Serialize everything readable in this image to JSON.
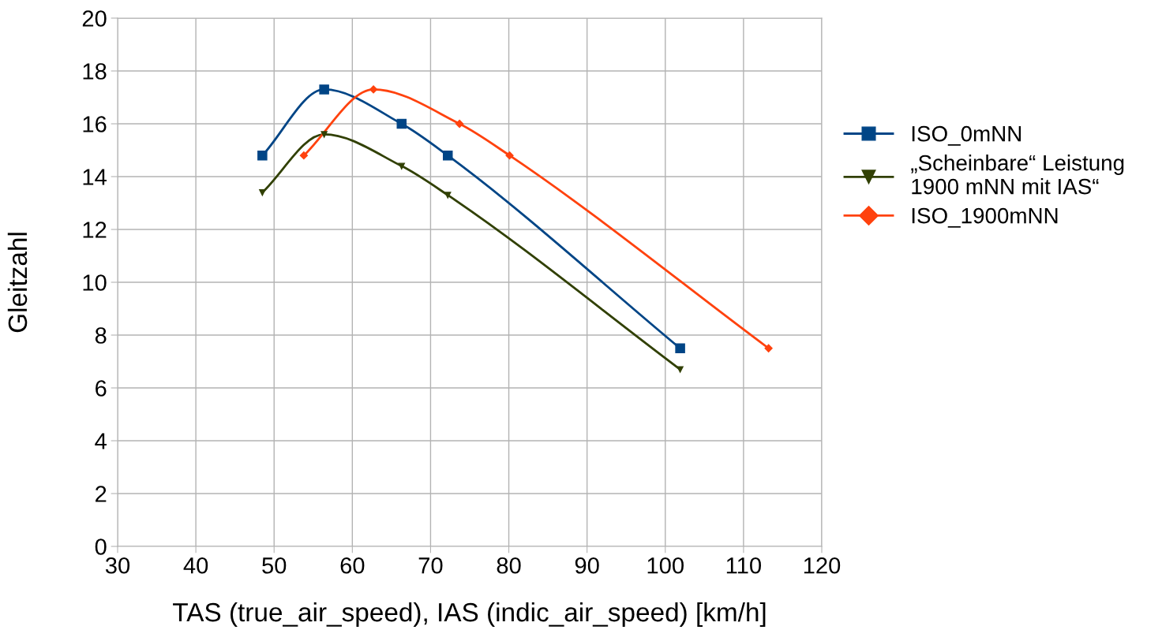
{
  "chart_data": {
    "type": "line",
    "xlabel": "TAS (true_air_speed), IAS (indic_air_speed) [km/h]",
    "ylabel": "Gleitzahl",
    "xlim": [
      30,
      120
    ],
    "xticks": [
      30,
      40,
      50,
      60,
      70,
      80,
      90,
      100,
      110,
      120
    ],
    "ylim": [
      0,
      20
    ],
    "yticks": [
      0,
      2,
      4,
      6,
      8,
      10,
      12,
      14,
      16,
      18,
      20
    ],
    "grid": true,
    "legend": "right",
    "series": [
      {
        "name": "ISO_0mNN",
        "color": "#004586",
        "marker": "square",
        "x": [
          48.5,
          56.4,
          66.3,
          72.2,
          101.9
        ],
        "values": [
          14.8,
          17.3,
          16.0,
          14.8,
          7.5
        ]
      },
      {
        "name": "„Scheinbare“ Leistung\n1900 mNN mit IAS“",
        "color": "#314004",
        "marker": "triangle",
        "x": [
          48.5,
          56.4,
          66.3,
          72.2,
          101.9
        ],
        "values": [
          13.4,
          15.6,
          14.4,
          13.3,
          6.7
        ]
      },
      {
        "name": "ISO_1900mNN",
        "color": "#ff420e",
        "marker": "diamond",
        "x": [
          53.8,
          62.7,
          73.7,
          80.1,
          113.2
        ],
        "values": [
          14.8,
          17.3,
          16.0,
          14.8,
          7.5
        ]
      }
    ]
  }
}
